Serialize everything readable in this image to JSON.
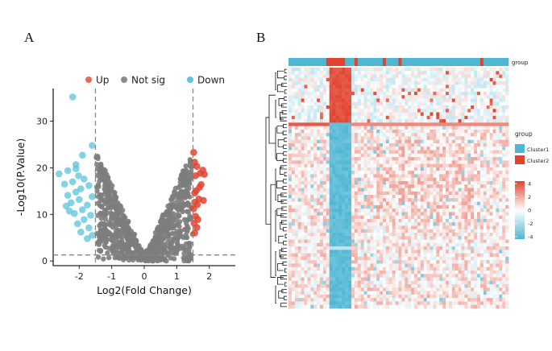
{
  "panels": {
    "a": "A",
    "b": "B"
  },
  "chart_data": [
    {
      "type": "scatter",
      "name": "volcano-plot",
      "xlabel": "Log2(Fold Change)",
      "ylabel": "-Log10(P.Value)",
      "xlim": [
        -2.8,
        2.8
      ],
      "ylim": [
        -1,
        37
      ],
      "xticks": [
        -2,
        -1,
        0,
        1,
        2
      ],
      "yticks": [
        0,
        10,
        20,
        30
      ],
      "thresholds": {
        "x": [
          -1.5,
          1.5
        ],
        "y": 1.3
      },
      "legend": {
        "position": "top",
        "entries": [
          {
            "label": "Up",
            "color": "#e8685a"
          },
          {
            "label": "Not sig",
            "color": "#8a8a8a"
          },
          {
            "label": "Down",
            "color": "#5bc3dc"
          }
        ]
      },
      "series": [
        {
          "name": "Up",
          "color": "#e0442f",
          "points": [
            [
              1.52,
              23.3
            ],
            [
              1.55,
              21.2
            ],
            [
              1.62,
              20.3
            ],
            [
              1.72,
              18.8
            ],
            [
              1.85,
              18.6
            ],
            [
              1.58,
              18.3
            ],
            [
              1.75,
              16.4
            ],
            [
              1.6,
              15.1
            ],
            [
              1.55,
              14.6
            ],
            [
              1.68,
              13.3
            ],
            [
              1.82,
              13.0
            ],
            [
              1.55,
              12.6
            ],
            [
              1.63,
              12.1
            ],
            [
              1.52,
              11.2
            ],
            [
              1.58,
              9.6
            ],
            [
              1.65,
              8.9
            ],
            [
              1.53,
              8.1
            ],
            [
              1.62,
              7.2
            ],
            [
              1.55,
              6.0
            ],
            [
              1.7,
              15.8
            ],
            [
              1.8,
              19.5
            ]
          ]
        },
        {
          "name": "Down",
          "color": "#5bc3dc",
          "points": [
            [
              -2.2,
              35.2
            ],
            [
              -1.6,
              24.8
            ],
            [
              -1.9,
              22.7
            ],
            [
              -2.1,
              20.7
            ],
            [
              -2.1,
              19.8
            ],
            [
              -2.35,
              19.4
            ],
            [
              -2.62,
              18.7
            ],
            [
              -2.02,
              18.3
            ],
            [
              -1.85,
              17.6
            ],
            [
              -2.2,
              17.0
            ],
            [
              -1.7,
              16.2
            ],
            [
              -2.45,
              16.5
            ],
            [
              -1.95,
              15.5
            ],
            [
              -2.1,
              14.8
            ],
            [
              -2.35,
              14.1
            ],
            [
              -1.6,
              13.8
            ],
            [
              -2.0,
              13.2
            ],
            [
              -2.25,
              12.5
            ],
            [
              -1.75,
              12.0
            ],
            [
              -2.4,
              11.8
            ],
            [
              -1.9,
              11.0
            ],
            [
              -2.15,
              10.2
            ],
            [
              -1.65,
              9.8
            ],
            [
              -1.85,
              8.9
            ],
            [
              -2.05,
              8.0
            ],
            [
              -1.7,
              7.1
            ],
            [
              -1.95,
              6.2
            ],
            [
              -1.6,
              5.5
            ],
            [
              -1.75,
              4.8
            ],
            [
              -2.3,
              10.7
            ]
          ]
        },
        {
          "name": "Not sig",
          "color": "#7d7d7d",
          "shape": "v-shaped cloud",
          "count": 650,
          "envelope_k": 15.5,
          "max_y": 24
        }
      ]
    },
    {
      "type": "heatmap",
      "name": "cluster-heatmap",
      "rows": 70,
      "cols": 70,
      "value_range": [
        -4,
        4
      ],
      "group_annotation": {
        "title": "group",
        "entries": [
          {
            "label": "Cluster1",
            "color": "#4fb6d3"
          },
          {
            "label": "Cluster2",
            "color": "#e0442f"
          }
        ],
        "cluster2_columns": [
          12,
          13,
          14,
          15,
          16,
          17,
          21,
          30,
          35,
          61
        ]
      },
      "row_clusters": {
        "top_rows": 16,
        "bottom_rows": 54
      },
      "colorbar": {
        "ticks": [
          4,
          2,
          0,
          -2,
          -4
        ],
        "colors": [
          "#e0442f",
          "#ffffff",
          "#4fb6d3"
        ]
      }
    }
  ]
}
